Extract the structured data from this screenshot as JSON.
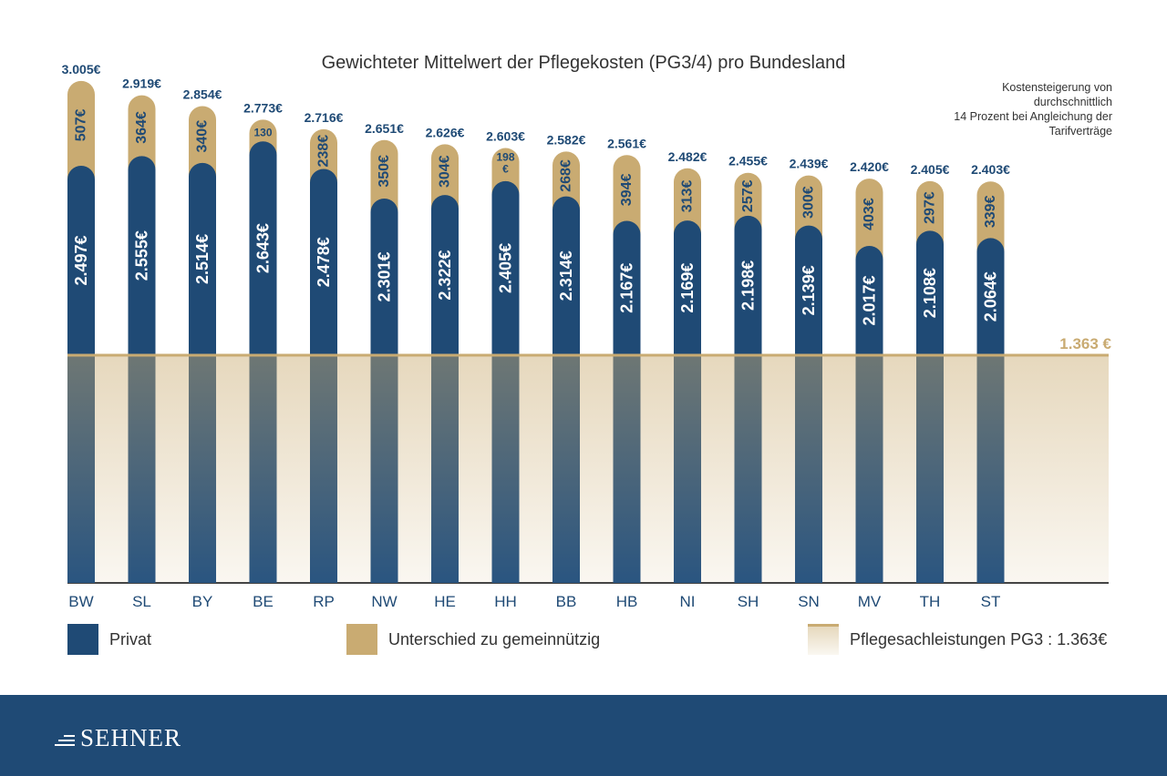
{
  "chart_data": {
    "type": "bar",
    "title": "Gewichteter Mittelwert der Pflegekosten (PG3/4) pro Bundesland",
    "note": [
      "Kostensteigerung von",
      "durchschnittlich",
      "14 Prozent bei Angleichung der",
      "Tarifverträge"
    ],
    "categories": [
      "BW",
      "SL",
      "BY",
      "BE",
      "RP",
      "NW",
      "HE",
      "HH",
      "BB",
      "HB",
      "NI",
      "SH",
      "SN",
      "MV",
      "TH",
      "ST"
    ],
    "series": [
      {
        "name": "Privat",
        "color": "#1f4a75",
        "values": [
          2497,
          2555,
          2514,
          2643,
          2478,
          2301,
          2322,
          2405,
          2314,
          2167,
          2169,
          2198,
          2139,
          2017,
          2108,
          2064
        ],
        "labels": [
          "2.497€",
          "2.555€",
          "2.514€",
          "2.643€",
          "2.478€",
          "2.301€",
          "2.322€",
          "2.405€",
          "2.314€",
          "2.167€",
          "2.169€",
          "2.198€",
          "2.139€",
          "2.017€",
          "2.108€",
          "2.064€"
        ]
      },
      {
        "name": "Unterschied zu gemeinnützig",
        "color": "#c9ab72",
        "values": [
          507,
          364,
          340,
          130,
          238,
          350,
          304,
          198,
          268,
          394,
          313,
          257,
          300,
          403,
          297,
          339
        ],
        "labels": [
          "507€",
          "364€",
          "340€",
          "130",
          "238€",
          "350€",
          "304€",
          "198 €",
          "268€",
          "394€",
          "313€",
          "257€",
          "300€",
          "403€",
          "297€",
          "339€"
        ]
      }
    ],
    "totals": [
      3005,
      2919,
      2854,
      2773,
      2716,
      2651,
      2626,
      2603,
      2582,
      2561,
      2482,
      2455,
      2439,
      2420,
      2405,
      2403
    ],
    "total_labels": [
      "3.005€",
      "2.919€",
      "2.854€",
      "2.773€",
      "2.716€",
      "2.651€",
      "2.626€",
      "2.603€",
      "2.582€",
      "2.561€",
      "2.482€",
      "2.455€",
      "2.439€",
      "2.420€",
      "2.405€",
      "2.403€"
    ],
    "reference": {
      "name": "Pflegesachleistungen PG3",
      "value": 1363,
      "label": "1.363 €",
      "color": "#c9ab72"
    },
    "ylim": [
      0,
      3005
    ],
    "grid": false,
    "legend_position": "bottom"
  },
  "legend": {
    "privat": "Privat",
    "unterschied": "Unterschied zu gemeinnützig",
    "pflege": "Pflegesachleistungen PG3 : 1.363€"
  },
  "footer": {
    "brand": "SEHNER"
  }
}
